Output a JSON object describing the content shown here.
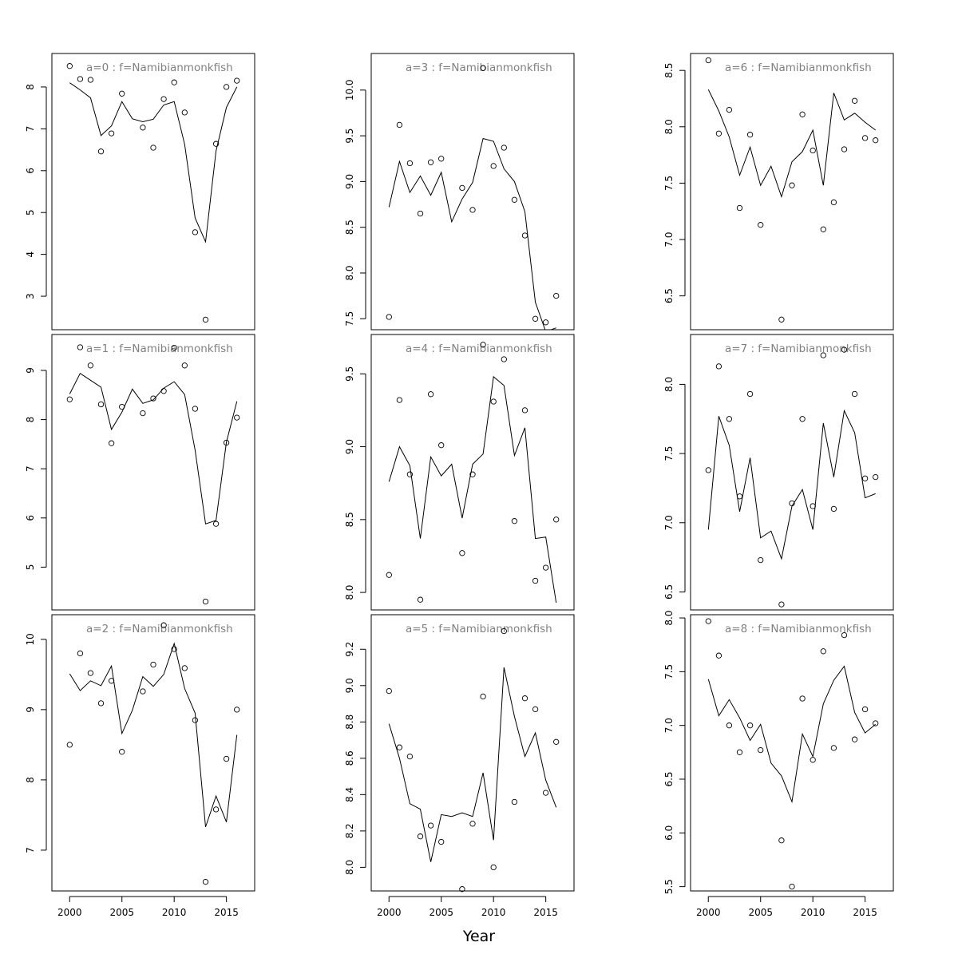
{
  "chart_data": {
    "type": "scatter",
    "xlabel": "Year",
    "x_ticks": [
      2000,
      2005,
      2010,
      2015
    ],
    "xlim": [
      1998.3,
      2017.7
    ],
    "panels": [
      {
        "title": "a=0  :  f=Namibianmonkfish",
        "ylim": [
          2.2,
          8.8
        ],
        "y_ticks": [
          3,
          4,
          5,
          6,
          7,
          8
        ],
        "x_ticks": [],
        "series": [
          {
            "kind": "points",
            "x": [
              2000,
              2001,
              2002,
              2003,
              2004,
              2005,
              2007,
              2008,
              2009,
              2010,
              2011,
              2012,
              2013,
              2014,
              2015,
              2016
            ],
            "values": [
              8.5,
              8.19,
              8.17,
              6.46,
              6.89,
              7.84,
              7.03,
              6.55,
              7.71,
              8.11,
              7.39,
              4.53,
              2.44,
              6.64,
              8.0,
              8.15
            ]
          },
          {
            "kind": "line",
            "x": [
              2000,
              2001,
              2002,
              2003,
              2004,
              2005,
              2006,
              2007,
              2008,
              2009,
              2010,
              2011,
              2012,
              2013,
              2014,
              2015,
              2016
            ],
            "values": [
              8.1,
              7.93,
              7.74,
              6.84,
              7.07,
              7.65,
              7.24,
              7.17,
              7.23,
              7.57,
              7.65,
              6.63,
              4.87,
              4.3,
              6.47,
              7.51,
              8.0
            ]
          }
        ]
      },
      {
        "title": "a=3  :  f=Namibianmonkfish",
        "ylim": [
          7.38,
          10.4
        ],
        "y_ticks": [
          7.5,
          8.0,
          8.5,
          9.0,
          9.5,
          10.0
        ],
        "x_ticks": [],
        "series": [
          {
            "kind": "points",
            "x": [
              2000,
              2001,
              2002,
              2003,
              2004,
              2005,
              2007,
              2008,
              2009,
              2010,
              2011,
              2012,
              2013,
              2014,
              2015,
              2016
            ],
            "values": [
              7.52,
              9.62,
              9.2,
              8.65,
              9.21,
              9.25,
              8.93,
              8.69,
              10.24,
              9.17,
              9.37,
              8.8,
              8.41,
              7.5,
              7.46,
              7.75
            ]
          },
          {
            "kind": "line",
            "x": [
              2000,
              2001,
              2002,
              2003,
              2004,
              2005,
              2006,
              2007,
              2008,
              2009,
              2010,
              2011,
              2012,
              2013,
              2014,
              2015,
              2016
            ],
            "values": [
              8.72,
              9.22,
              8.88,
              9.06,
              8.85,
              9.1,
              8.56,
              8.81,
              8.99,
              9.47,
              9.44,
              9.14,
              9.0,
              8.67,
              7.68,
              7.36,
              7.4
            ]
          }
        ]
      },
      {
        "title": "a=6  :  f=Namibianmonkfish",
        "ylim": [
          6.2,
          8.65
        ],
        "y_ticks": [
          6.5,
          7.0,
          7.5,
          8.0,
          8.5
        ],
        "x_ticks": [],
        "series": [
          {
            "kind": "points",
            "x": [
              2000,
              2001,
              2002,
              2003,
              2004,
              2005,
              2007,
              2008,
              2009,
              2010,
              2011,
              2012,
              2013,
              2014,
              2015,
              2016
            ],
            "values": [
              8.59,
              7.94,
              8.15,
              7.28,
              7.93,
              7.13,
              6.29,
              7.48,
              8.11,
              7.79,
              7.09,
              7.33,
              7.8,
              8.23,
              7.9,
              7.88
            ]
          },
          {
            "kind": "line",
            "x": [
              2000,
              2001,
              2002,
              2003,
              2004,
              2005,
              2006,
              2007,
              2008,
              2009,
              2010,
              2011,
              2012,
              2013,
              2014,
              2015,
              2016
            ],
            "values": [
              8.33,
              8.14,
              7.91,
              7.57,
              7.82,
              7.48,
              7.65,
              7.38,
              7.69,
              7.78,
              7.97,
              7.48,
              8.3,
              8.06,
              8.12,
              8.04,
              7.97
            ]
          }
        ]
      },
      {
        "title": "a=1  :  f=Namibianmonkfish",
        "ylim": [
          4.13,
          9.73
        ],
        "y_ticks": [
          5,
          6,
          7,
          8,
          9
        ],
        "x_ticks": [],
        "series": [
          {
            "kind": "points",
            "x": [
              2000,
              2001,
              2002,
              2003,
              2004,
              2005,
              2007,
              2008,
              2009,
              2010,
              2011,
              2012,
              2013,
              2014,
              2015,
              2016
            ],
            "values": [
              8.41,
              9.47,
              9.1,
              8.31,
              7.52,
              8.26,
              8.13,
              8.43,
              8.58,
              9.46,
              9.1,
              8.22,
              4.3,
              5.88,
              7.53,
              8.04
            ]
          },
          {
            "kind": "line",
            "x": [
              2000,
              2001,
              2002,
              2003,
              2004,
              2005,
              2006,
              2007,
              2008,
              2009,
              2010,
              2011,
              2012,
              2013,
              2014,
              2015,
              2016
            ],
            "values": [
              8.52,
              8.94,
              8.8,
              8.66,
              7.8,
              8.15,
              8.62,
              8.33,
              8.4,
              8.64,
              8.77,
              8.51,
              7.38,
              5.88,
              5.95,
              7.54,
              8.37
            ]
          }
        ]
      },
      {
        "title": "a=4  :  f=Namibianmonkfish",
        "ylim": [
          7.88,
          9.77
        ],
        "y_ticks": [
          8.0,
          8.5,
          9.0,
          9.5
        ],
        "x_ticks": [],
        "series": [
          {
            "kind": "points",
            "x": [
              2000,
              2001,
              2002,
              2003,
              2004,
              2005,
              2007,
              2008,
              2009,
              2010,
              2011,
              2012,
              2013,
              2014,
              2015,
              2016
            ],
            "values": [
              8.12,
              9.32,
              8.81,
              7.95,
              9.36,
              9.01,
              8.27,
              8.81,
              9.7,
              9.31,
              9.6,
              8.49,
              9.25,
              8.08,
              8.17,
              8.5
            ]
          },
          {
            "kind": "line",
            "x": [
              2000,
              2001,
              2002,
              2003,
              2004,
              2005,
              2006,
              2007,
              2008,
              2009,
              2010,
              2011,
              2012,
              2013,
              2014,
              2015,
              2016
            ],
            "values": [
              8.76,
              9.0,
              8.87,
              8.37,
              8.93,
              8.8,
              8.88,
              8.51,
              8.88,
              8.95,
              9.48,
              9.42,
              8.94,
              9.13,
              8.37,
              8.38,
              7.93
            ]
          }
        ]
      },
      {
        "title": "a=7  :  f=Namibianmonkfish",
        "ylim": [
          6.37,
          8.36
        ],
        "y_ticks": [
          6.5,
          7.0,
          7.5,
          8.0
        ],
        "x_ticks": [],
        "series": [
          {
            "kind": "points",
            "x": [
              2000,
              2001,
              2002,
              2003,
              2004,
              2005,
              2007,
              2008,
              2009,
              2010,
              2011,
              2012,
              2013,
              2014,
              2015,
              2016
            ],
            "values": [
              7.38,
              8.13,
              7.75,
              7.19,
              7.93,
              6.73,
              6.41,
              7.14,
              7.75,
              7.12,
              8.21,
              7.1,
              8.25,
              7.93,
              7.32,
              7.33
            ]
          },
          {
            "kind": "line",
            "x": [
              2000,
              2001,
              2002,
              2003,
              2004,
              2005,
              2006,
              2007,
              2008,
              2009,
              2010,
              2011,
              2012,
              2013,
              2014,
              2015,
              2016
            ],
            "values": [
              6.95,
              7.77,
              7.56,
              7.08,
              7.47,
              6.89,
              6.94,
              6.74,
              7.12,
              7.24,
              6.95,
              7.72,
              7.33,
              7.81,
              7.65,
              7.18,
              7.21
            ]
          }
        ]
      },
      {
        "title": "a=2  :  f=Namibianmonkfish",
        "ylim": [
          6.42,
          10.35
        ],
        "y_ticks": [
          7,
          8,
          9,
          10
        ],
        "x_ticks": [
          2000,
          2005,
          2010,
          2015
        ],
        "series": [
          {
            "kind": "points",
            "x": [
              2000,
              2001,
              2002,
              2003,
              2004,
              2005,
              2007,
              2008,
              2009,
              2010,
              2011,
              2012,
              2013,
              2014,
              2015,
              2016
            ],
            "values": [
              8.5,
              9.8,
              9.52,
              9.09,
              9.41,
              8.4,
              9.26,
              9.64,
              10.2,
              9.86,
              9.59,
              8.85,
              6.55,
              7.58,
              8.3,
              9.0
            ]
          },
          {
            "kind": "line",
            "x": [
              2000,
              2001,
              2002,
              2003,
              2004,
              2005,
              2006,
              2007,
              2008,
              2009,
              2010,
              2011,
              2012,
              2013,
              2014,
              2015,
              2016
            ],
            "values": [
              9.51,
              9.27,
              9.41,
              9.34,
              9.62,
              8.66,
              8.99,
              9.47,
              9.33,
              9.5,
              9.94,
              9.3,
              8.95,
              7.33,
              7.77,
              7.4,
              8.64
            ]
          }
        ]
      },
      {
        "title": "a=5  :  f=Namibianmonkfish",
        "ylim": [
          7.87,
          9.39
        ],
        "y_ticks": [
          8.0,
          8.2,
          8.4,
          8.6,
          8.8,
          9.0,
          9.2
        ],
        "x_ticks": [
          2000,
          2005,
          2010,
          2015
        ],
        "series": [
          {
            "kind": "points",
            "x": [
              2000,
              2001,
              2002,
              2003,
              2004,
              2005,
              2007,
              2008,
              2009,
              2010,
              2011,
              2012,
              2013,
              2014,
              2015,
              2016
            ],
            "values": [
              8.97,
              8.66,
              8.61,
              8.17,
              8.23,
              8.14,
              7.88,
              8.24,
              8.94,
              8.0,
              9.3,
              8.36,
              8.93,
              8.87,
              8.41,
              8.69
            ]
          },
          {
            "kind": "line",
            "x": [
              2000,
              2001,
              2002,
              2003,
              2004,
              2005,
              2006,
              2007,
              2008,
              2009,
              2010,
              2011,
              2012,
              2013,
              2014,
              2015,
              2016
            ],
            "values": [
              8.79,
              8.6,
              8.35,
              8.32,
              8.03,
              8.29,
              8.28,
              8.3,
              8.28,
              8.52,
              8.15,
              9.1,
              8.83,
              8.61,
              8.74,
              8.48,
              8.33
            ]
          }
        ]
      },
      {
        "title": "a=8  :  f=Namibianmonkfish",
        "ylim": [
          5.46,
          8.03
        ],
        "y_ticks": [
          5.5,
          6.0,
          6.5,
          7.0,
          7.5,
          8.0
        ],
        "x_ticks": [
          2000,
          2005,
          2010,
          2015
        ],
        "series": [
          {
            "kind": "points",
            "x": [
              2000,
              2001,
              2002,
              2003,
              2004,
              2005,
              2007,
              2008,
              2009,
              2010,
              2011,
              2012,
              2013,
              2014,
              2015,
              2016
            ],
            "values": [
              7.97,
              7.65,
              7.0,
              6.75,
              7.0,
              6.77,
              5.93,
              5.5,
              7.25,
              6.68,
              7.69,
              6.79,
              7.84,
              6.87,
              7.15,
              7.02
            ]
          },
          {
            "kind": "line",
            "x": [
              2000,
              2001,
              2002,
              2003,
              2004,
              2005,
              2006,
              2007,
              2008,
              2009,
              2010,
              2011,
              2012,
              2013,
              2014,
              2015,
              2016
            ],
            "values": [
              7.43,
              7.09,
              7.24,
              7.07,
              6.86,
              7.01,
              6.65,
              6.53,
              6.29,
              6.92,
              6.71,
              7.2,
              7.42,
              7.55,
              7.12,
              6.93,
              7.01
            ]
          }
        ]
      }
    ]
  }
}
